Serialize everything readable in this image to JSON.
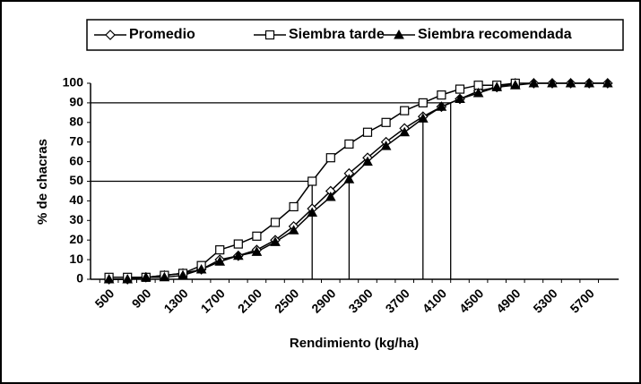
{
  "chart_data": {
    "type": "line",
    "x_label": "Rendimiento (kg/ha)",
    "y_label": "% de chacras",
    "categories": [
      "500",
      null,
      "900",
      null,
      "1300",
      null,
      "1700",
      null,
      "2100",
      null,
      "2500",
      null,
      "2900",
      null,
      "3300",
      null,
      "3700",
      null,
      "4100",
      null,
      "4500",
      null,
      "4900",
      null,
      "5300",
      null,
      "5700",
      null
    ],
    "series": [
      {
        "name": "Promedio",
        "color": "#000000",
        "marker": "diamond",
        "values": [
          0,
          0,
          1,
          2,
          3,
          5,
          10,
          12,
          15,
          20,
          27,
          36,
          45,
          54,
          62,
          70,
          77,
          83,
          88,
          92,
          96,
          98,
          100,
          100,
          100,
          100,
          100,
          100
        ]
      },
      {
        "name": "Siembra tarde",
        "color": "#000000",
        "marker": "square",
        "values": [
          1,
          1,
          1,
          2,
          3,
          7,
          15,
          18,
          22,
          29,
          37,
          50,
          62,
          69,
          75,
          80,
          86,
          90,
          94,
          97,
          99,
          99,
          100,
          null,
          null,
          null,
          null,
          null
        ]
      },
      {
        "name": "Siembra recomendada",
        "color": "#000000",
        "marker": "triangle",
        "values": [
          0,
          0,
          1,
          1,
          2,
          5,
          9,
          12,
          14,
          19,
          25,
          34,
          42,
          51,
          60,
          68,
          75,
          82,
          88,
          92,
          95,
          98,
          99,
          100,
          100,
          100,
          100,
          100
        ]
      }
    ],
    "ylim": [
      0,
      100
    ],
    "yticks": [
      0,
      10,
      20,
      30,
      40,
      50,
      60,
      70,
      80,
      90,
      100
    ],
    "x_start": 500,
    "x_step": 200,
    "hlines": [
      {
        "y": 50,
        "x": 2700
      },
      {
        "y": 90,
        "x": 4200
      }
    ],
    "vlines": [
      {
        "x": 2700,
        "y": 50
      },
      {
        "x": 3100,
        "y": 51
      },
      {
        "x": 3900,
        "y": 83
      },
      {
        "x": 4200,
        "y": 90
      }
    ],
    "legend": "top",
    "grid": false
  }
}
